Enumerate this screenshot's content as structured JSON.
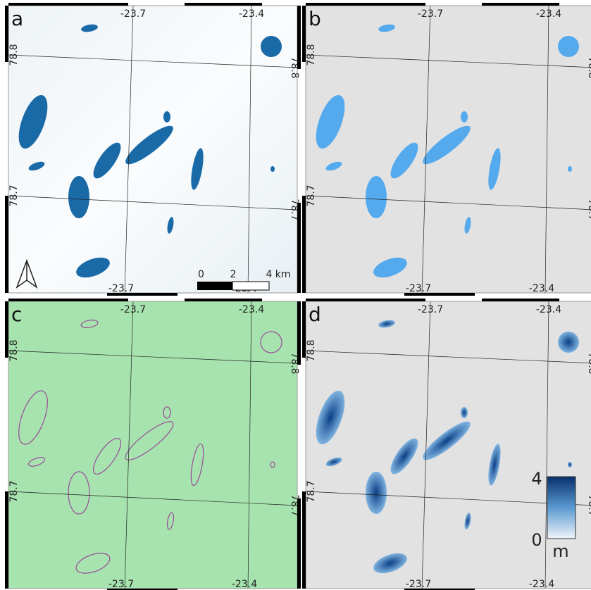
{
  "panels": [
    {
      "label": "a"
    },
    {
      "label": "b"
    },
    {
      "label": "c"
    },
    {
      "label": "d"
    }
  ],
  "graticule": {
    "lon": [
      "-23.7",
      "-23.4"
    ],
    "lat": [
      "78.8",
      "78.7"
    ]
  },
  "scale_bar": {
    "labels": [
      "0",
      "2",
      "4 km"
    ]
  },
  "colorbar": {
    "max_label": "4",
    "min_label": "0",
    "unit": "m"
  }
}
